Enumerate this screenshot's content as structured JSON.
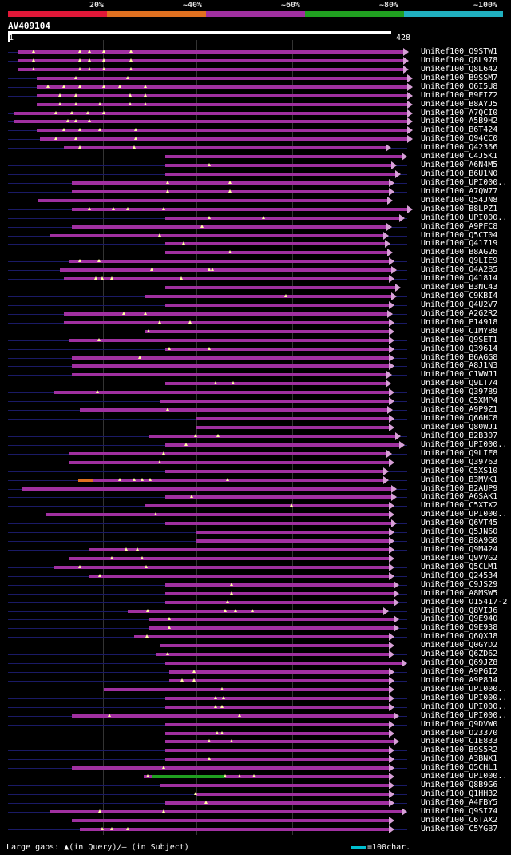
{
  "legend": {
    "labels": [
      "20%",
      "~40%",
      "~60%",
      "~80%",
      "~100%"
    ],
    "colors": [
      "#e01838",
      "#e07020",
      "#a030a0",
      "#20a020",
      "#20b0c0"
    ]
  },
  "query": {
    "id": "AV409104",
    "start": "1",
    "end": "428"
  },
  "hits": [
    {
      "name": "UniRef100_Q9STW1",
      "s": 22,
      "e": 505,
      "t": [
        42,
        100,
        112,
        130,
        164
      ]
    },
    {
      "name": "UniRef100_Q8L978",
      "s": 22,
      "e": 505,
      "t": [
        42,
        100,
        112,
        130,
        164
      ]
    },
    {
      "name": "UniRef100_Q8L642",
      "s": 22,
      "e": 505,
      "t": [
        42,
        100,
        112,
        130,
        164
      ]
    },
    {
      "name": "UniRef100_B9SSM7",
      "s": 46,
      "e": 510,
      "t": [
        95,
        160
      ]
    },
    {
      "name": "UniRef100_Q6I5U8",
      "s": 46,
      "e": 510,
      "t": [
        60,
        80,
        100,
        130,
        150,
        182
      ]
    },
    {
      "name": "UniRef100_B9FIZ2",
      "s": 46,
      "e": 510,
      "t": [
        75,
        95,
        163,
        182
      ]
    },
    {
      "name": "UniRef100_B8AYJ5",
      "s": 46,
      "e": 510,
      "t": [
        75,
        95,
        125,
        163,
        182
      ]
    },
    {
      "name": "UniRef100_A7QCI0",
      "s": 18,
      "e": 510,
      "t": [
        70,
        90,
        110,
        130
      ]
    },
    {
      "name": "UniRef100_A5B9H2",
      "s": 18,
      "e": 510,
      "t": [
        85,
        95,
        112
      ]
    },
    {
      "name": "UniRef100_B6T424",
      "s": 46,
      "e": 510,
      "t": [
        80,
        100,
        125,
        170
      ]
    },
    {
      "name": "UniRef100_Q94CC0",
      "s": 50,
      "e": 510,
      "t": [
        70,
        95,
        170
      ]
    },
    {
      "name": "UniRef100_Q42366",
      "s": 80,
      "e": 483,
      "t": [
        100,
        168
      ]
    },
    {
      "name": "UniRef100_C4J5K1",
      "s": 207,
      "e": 503,
      "t": []
    },
    {
      "name": "UniRef100_A6N4M5",
      "s": 207,
      "e": 490,
      "t": [
        262
      ]
    },
    {
      "name": "UniRef100_B6U1N0",
      "s": 207,
      "e": 495,
      "t": []
    },
    {
      "name": "UniRef100_UPI000..",
      "s": 90,
      "e": 487,
      "t": [
        210,
        288
      ]
    },
    {
      "name": "UniRef100_A7QW77",
      "s": 90,
      "e": 487,
      "t": [
        210,
        288
      ]
    },
    {
      "name": "UniRef100_Q54JN8",
      "s": 47,
      "e": 485,
      "t": []
    },
    {
      "name": "UniRef100_B8LPZ1",
      "s": 90,
      "e": 510,
      "t": [
        112,
        142,
        160,
        205
      ]
    },
    {
      "name": "UniRef100_UPI000..",
      "s": 207,
      "e": 500,
      "t": [
        262,
        330
      ]
    },
    {
      "name": "UniRef100_A9PFC8",
      "s": 90,
      "e": 484,
      "t": [
        253
      ]
    },
    {
      "name": "UniRef100_Q5CT04",
      "s": 62,
      "e": 480,
      "t": [
        200
      ]
    },
    {
      "name": "UniRef100_Q41719",
      "s": 207,
      "e": 482,
      "t": [
        230
      ]
    },
    {
      "name": "UniRef100_B8AG26",
      "s": 207,
      "e": 485,
      "t": [
        288
      ]
    },
    {
      "name": "UniRef100_Q9LIE9",
      "s": 86,
      "e": 487,
      "t": [
        100,
        124
      ]
    },
    {
      "name": "UniRef100_Q4A2B5",
      "s": 75,
      "e": 490,
      "t": [
        190,
        262,
        266
      ]
    },
    {
      "name": "UniRef100_Q41814",
      "s": 80,
      "e": 487,
      "t": [
        120,
        128,
        140,
        227
      ]
    },
    {
      "name": "UniRef100_B3NC43",
      "s": 207,
      "e": 495,
      "t": []
    },
    {
      "name": "UniRef100_C9KBI4",
      "s": 181,
      "e": 490,
      "t": [
        358
      ]
    },
    {
      "name": "UniRef100_Q4U2V7",
      "s": 207,
      "e": 487,
      "t": []
    },
    {
      "name": "UniRef100_A2G2R2",
      "s": 80,
      "e": 485,
      "t": [
        155,
        182
      ]
    },
    {
      "name": "UniRef100_P14918",
      "s": 80,
      "e": 487,
      "t": [
        200,
        238
      ]
    },
    {
      "name": "UniRef100_C1MY88",
      "s": 181,
      "e": 487,
      "t": [
        186
      ]
    },
    {
      "name": "UniRef100_Q9SET1",
      "s": 86,
      "e": 487,
      "t": [
        124
      ]
    },
    {
      "name": "UniRef100_Q39614",
      "s": 207,
      "e": 487,
      "t": [
        212,
        262
      ]
    },
    {
      "name": "UniRef100_B6AGG8",
      "s": 90,
      "e": 487,
      "t": [
        175
      ]
    },
    {
      "name": "UniRef100_A8J1N3",
      "s": 90,
      "e": 487,
      "t": []
    },
    {
      "name": "UniRef100_C1WWJ1",
      "s": 90,
      "e": 484,
      "t": []
    },
    {
      "name": "UniRef100_Q9LT74",
      "s": 207,
      "e": 483,
      "t": [
        270,
        292
      ]
    },
    {
      "name": "UniRef100_Q39789",
      "s": 68,
      "e": 487,
      "t": [
        122
      ]
    },
    {
      "name": "UniRef100_C5XMP4",
      "s": 200,
      "e": 487,
      "t": []
    },
    {
      "name": "UniRef100_A9P9Z1",
      "s": 100,
      "e": 485,
      "t": [
        210
      ]
    },
    {
      "name": "UniRef100_Q66HC8",
      "s": 246,
      "e": 487,
      "t": []
    },
    {
      "name": "UniRef100_Q80WJ1",
      "s": 246,
      "e": 487,
      "t": []
    },
    {
      "name": "UniRef100_B2B307",
      "s": 186,
      "e": 495,
      "t": [
        245,
        273
      ]
    },
    {
      "name": "UniRef100_UPI000..",
      "s": 207,
      "e": 500,
      "t": [
        233
      ]
    },
    {
      "name": "UniRef100_Q9LIE8",
      "s": 86,
      "e": 484,
      "t": [
        205
      ]
    },
    {
      "name": "UniRef100_Q39763",
      "s": 86,
      "e": 487,
      "t": [
        200
      ]
    },
    {
      "name": "UniRef100_C5XS10",
      "s": 207,
      "e": 480,
      "t": []
    },
    {
      "name": "UniRef100_B3MVK1",
      "s": 98,
      "e": 480,
      "t": [
        150,
        168,
        178,
        188,
        285
      ],
      "o": [
        98,
        117
      ]
    },
    {
      "name": "UniRef100_B2AUP9",
      "s": 28,
      "e": 490,
      "t": []
    },
    {
      "name": "UniRef100_A6SAK1",
      "s": 207,
      "e": 490,
      "t": [
        240
      ]
    },
    {
      "name": "UniRef100_C5XTX2",
      "s": 181,
      "e": 487,
      "t": [
        365
      ]
    },
    {
      "name": "UniRef100_UPI000..",
      "s": 58,
      "e": 487,
      "t": [
        195
      ]
    },
    {
      "name": "UniRef100_Q6VT45",
      "s": 207,
      "e": 490,
      "t": []
    },
    {
      "name": "UniRef100_Q5JN60",
      "s": 246,
      "e": 487,
      "t": []
    },
    {
      "name": "UniRef100_B8A9G0",
      "s": 246,
      "e": 487,
      "t": []
    },
    {
      "name": "UniRef100_Q9M424",
      "s": 112,
      "e": 487,
      "t": [
        158,
        172
      ]
    },
    {
      "name": "UniRef100_Q9VVG2",
      "s": 86,
      "e": 487,
      "t": [
        140,
        178
      ]
    },
    {
      "name": "UniRef100_Q5CLM1",
      "s": 68,
      "e": 487,
      "t": [
        100,
        183
      ]
    },
    {
      "name": "UniRef100_Q24534",
      "s": 112,
      "e": 487,
      "t": [
        125
      ]
    },
    {
      "name": "UniRef100_C9JS29",
      "s": 207,
      "e": 493,
      "t": [
        290
      ]
    },
    {
      "name": "UniRef100_A8MSW5",
      "s": 207,
      "e": 493,
      "t": [
        290
      ]
    },
    {
      "name": "UniRef100_O15417-2",
      "s": 207,
      "e": 493,
      "t": [
        285
      ]
    },
    {
      "name": "UniRef100_Q8VIJ6",
      "s": 160,
      "e": 480,
      "t": [
        185,
        282,
        295,
        316
      ]
    },
    {
      "name": "UniRef100_Q9E940",
      "s": 186,
      "e": 493,
      "t": [
        212
      ]
    },
    {
      "name": "UniRef100_Q9E938",
      "s": 186,
      "e": 493,
      "t": [
        212
      ]
    },
    {
      "name": "UniRef100_Q6QXJ8",
      "s": 168,
      "e": 487,
      "t": [
        184
      ]
    },
    {
      "name": "UniRef100_Q0GYD2",
      "s": 200,
      "e": 487,
      "t": []
    },
    {
      "name": "UniRef100_Q6ZD62",
      "s": 196,
      "e": 487,
      "t": [
        210
      ]
    },
    {
      "name": "UniRef100_Q69JZ8",
      "s": 207,
      "e": 503,
      "t": []
    },
    {
      "name": "UniRef100_A9PGI2",
      "s": 212,
      "e": 487,
      "t": [
        243
      ]
    },
    {
      "name": "UniRef100_A9P8J4",
      "s": 212,
      "e": 487,
      "t": [
        228,
        243
      ]
    },
    {
      "name": "UniRef100_UPI000..",
      "s": 130,
      "e": 487,
      "t": [
        278
      ]
    },
    {
      "name": "UniRef100_UPI000..",
      "s": 207,
      "e": 487,
      "t": [
        270,
        280
      ]
    },
    {
      "name": "UniRef100_UPI000..",
      "s": 207,
      "e": 487,
      "t": [
        270,
        278
      ]
    },
    {
      "name": "UniRef100_UPI000..",
      "s": 90,
      "e": 493,
      "t": [
        137,
        300
      ]
    },
    {
      "name": "UniRef100_Q9DVW0",
      "s": 207,
      "e": 487,
      "t": []
    },
    {
      "name": "UniRef100_O23370",
      "s": 207,
      "e": 487,
      "t": [
        272,
        278
      ]
    },
    {
      "name": "UniRef100_C1E833",
      "s": 207,
      "e": 493,
      "t": [
        262,
        290
      ]
    },
    {
      "name": "UniRef100_B9S5R2",
      "s": 207,
      "e": 487,
      "t": []
    },
    {
      "name": "UniRef100_A3BNX1",
      "s": 207,
      "e": 487,
      "t": [
        262
      ]
    },
    {
      "name": "UniRef100_Q5CHL1",
      "s": 90,
      "e": 487,
      "t": [
        205
      ]
    },
    {
      "name": "UniRef100_UPI000..",
      "s": 180,
      "e": 487,
      "t": [
        185,
        282,
        300,
        318
      ],
      "g": [
        190,
        282
      ]
    },
    {
      "name": "UniRef100_Q8B9G6",
      "s": 200,
      "e": 487,
      "t": []
    },
    {
      "name": "UniRef100_Q1HH32",
      "s": 246,
      "e": 487,
      "t": [
        245
      ]
    },
    {
      "name": "UniRef100_A4FBY5",
      "s": 207,
      "e": 487,
      "t": [
        258
      ]
    },
    {
      "name": "UniRef100_Q9SI74",
      "s": 62,
      "e": 503,
      "t": [
        125,
        205
      ]
    },
    {
      "name": "UniRef100_C6TAX2",
      "s": 90,
      "e": 487,
      "t": []
    },
    {
      "name": "UniRef100_C5YGB7",
      "s": 100,
      "e": 487,
      "t": [
        128,
        140,
        160
      ]
    }
  ],
  "footer": {
    "text": "Large gaps: ▲(in Query)/– (in Subject)",
    "scale": "=100char."
  }
}
